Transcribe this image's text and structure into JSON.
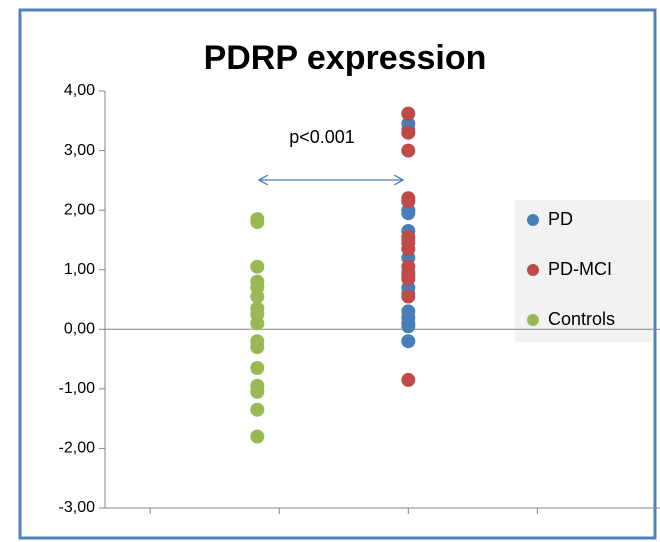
{
  "chart_data": {
    "type": "scatter",
    "title": "PDRP expression",
    "annotation": "p<0.001",
    "xlim": [
      0.65,
      4.95
    ],
    "xticks": [
      1,
      2,
      3,
      4
    ],
    "ylim": [
      -3,
      4
    ],
    "yticks": [
      {
        "value": -3,
        "label": "-3,00"
      },
      {
        "value": -2,
        "label": "-2,00"
      },
      {
        "value": -1,
        "label": "-1,00"
      },
      {
        "value": 0,
        "label": "0,00"
      },
      {
        "value": 1,
        "label": "1,00"
      },
      {
        "value": 2,
        "label": "2,00"
      },
      {
        "value": 3,
        "label": "3,00"
      },
      {
        "value": 4,
        "label": "4,00"
      }
    ],
    "legend": "right",
    "series": [
      {
        "name": "PD",
        "color": "#4a7ebb",
        "x": [
          3,
          3,
          3,
          3,
          3,
          3,
          3,
          3,
          3,
          3,
          3,
          3,
          3,
          3,
          3
        ],
        "values": [
          3.45,
          3.35,
          2.0,
          1.95,
          1.65,
          1.5,
          1.2,
          0.95,
          0.7,
          0.6,
          0.3,
          0.2,
          0.1,
          0.05,
          -0.2
        ]
      },
      {
        "name": "PD-MCI",
        "color": "#be4b48",
        "x": [
          3,
          3,
          3,
          3,
          3,
          3,
          3,
          3,
          3,
          3,
          3,
          3,
          3
        ],
        "values": [
          3.62,
          3.3,
          3.0,
          2.2,
          2.15,
          1.55,
          1.45,
          1.35,
          1.05,
          0.9,
          0.85,
          0.55,
          -0.85
        ]
      },
      {
        "name": "Controls",
        "color": "#98b954",
        "x": [
          1.83,
          1.83,
          1.83,
          1.83,
          1.83,
          1.83,
          1.83,
          1.83,
          1.83,
          1.83,
          1.83,
          1.83,
          1.83,
          1.83,
          1.83,
          1.83
        ],
        "values": [
          1.85,
          1.8,
          1.05,
          0.8,
          0.7,
          0.55,
          0.35,
          0.25,
          0.1,
          -0.2,
          -0.3,
          -0.65,
          -0.95,
          -1.05,
          -1.35,
          -1.8
        ]
      }
    ]
  }
}
